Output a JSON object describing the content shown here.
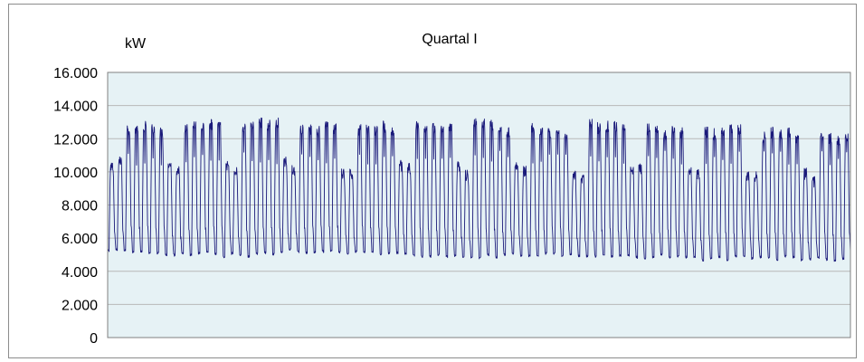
{
  "chart_data": {
    "type": "line",
    "title": "Quartal I",
    "ylabel": "kW",
    "ylim": [
      0,
      16000
    ],
    "yticks": [
      0,
      2000,
      4000,
      6000,
      8000,
      10000,
      12000,
      14000,
      16000
    ],
    "ytick_labels": [
      "0",
      "2.000",
      "4.000",
      "6.000",
      "8.000",
      "10.000",
      "12.000",
      "14.000",
      "16.000"
    ],
    "grid": true,
    "legend": "none",
    "colors": {
      "line": "#1a1a7a",
      "plot_background": "#e6f2f5",
      "gridline": "#b8b8b8",
      "plot_border": "#808080"
    },
    "series": [
      {
        "days": 90,
        "first_day_weekday_index": 5,
        "weekday_peak_kw": [
          12900,
          13100,
          13100,
          12900,
          13000,
          13100,
          13000,
          12700,
          13100,
          12700,
          12700,
          12500,
          12400,
          12500,
          12700,
          12700,
          12500
        ],
        "weekend_peak_kw": [
          10800,
          10600,
          10500,
          10700,
          10500,
          10400,
          10400,
          10300,
          10200,
          10200,
          10100,
          10000,
          10000,
          10000,
          9900,
          9900,
          9900,
          10800
        ],
        "night_min_kw": [
          5200,
          5000,
          5000,
          5200,
          5100,
          5000,
          4900,
          5000,
          5000,
          4900,
          4800,
          4800,
          4700,
          4700,
          4600,
          4600,
          4600,
          4700
        ],
        "weekday_midday_dip_kw": 11300
      }
    ]
  }
}
